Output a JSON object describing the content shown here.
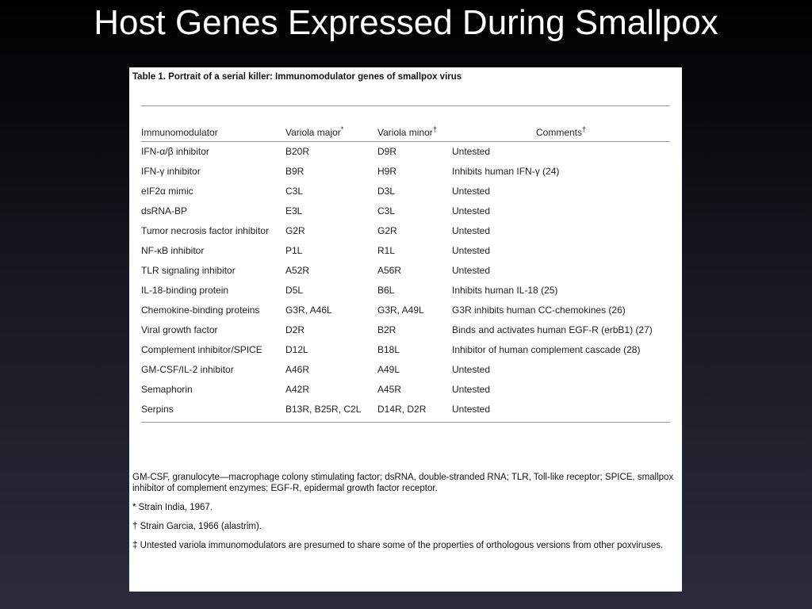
{
  "slide": {
    "title": "Host Genes Expressed During Smallpox"
  },
  "table": {
    "caption": "Table 1. Portrait of a serial killer: Immunomodulator genes of smallpox virus",
    "headers": [
      {
        "text": "Immunomodulator"
      },
      {
        "text": "Variola major",
        "mark": "*"
      },
      {
        "text": "Variola minor",
        "mark": "†"
      },
      {
        "text": "Comments",
        "mark": "†"
      }
    ],
    "rows": [
      [
        "IFN-α/β inhibitor",
        "B20R",
        "D9R",
        "Untested"
      ],
      [
        "IFN-γ inhibitor",
        "B9R",
        "H9R",
        "Inhibits human IFN-γ (24)"
      ],
      [
        "eIF2α mimic",
        "C3L",
        "D3L",
        "Untested"
      ],
      [
        "dsRNA-BP",
        "E3L",
        "C3L",
        "Untested"
      ],
      [
        "Tumor necrosis factor inhibitor",
        "G2R",
        "G2R",
        "Untested"
      ],
      [
        "NF-κB inhibitor",
        "P1L",
        "R1L",
        "Untested"
      ],
      [
        "TLR signaling inhibitor",
        "A52R",
        "A56R",
        "Untested"
      ],
      [
        "IL-18-binding protein",
        "D5L",
        "B6L",
        "Inhibits human IL-18 (25)"
      ],
      [
        "Chemokine-binding proteins",
        "G3R, A46L",
        "G3R, A49L",
        "G3R inhibits human CC-chemokines (26)"
      ],
      [
        "Viral growth factor",
        "D2R",
        "B2R",
        "Binds and activates human EGF-R (erbB1) (27)"
      ],
      [
        "Complement inhibitor/SPICE",
        "D12L",
        "B18L",
        "Inhibitor of human complement cascade (28)"
      ],
      [
        "GM-CSF/IL-2 inhibitor",
        "A46R",
        "A49L",
        "Untested"
      ],
      [
        "Semaphorin",
        "A42R",
        "A45R",
        "Untested"
      ],
      [
        "Serpins",
        "B13R, B25R, C2L",
        "D14R, D2R",
        "Untested"
      ]
    ],
    "footnotes": [
      "GM-CSF, granulocyte—macrophage colony stimulating factor; dsRNA, double-stranded RNA; TLR, Toll-like receptor; SPICE, smallpox inhibitor of complement enzymes; EGF-R, epidermal growth factor receptor.",
      "* Strain India, 1967.",
      "† Strain Garcia, 1966 (alastrim).",
      "‡ Untested variola immunomodulators are presumed to share some of the properties of orthologous versions from other poxviruses."
    ]
  }
}
